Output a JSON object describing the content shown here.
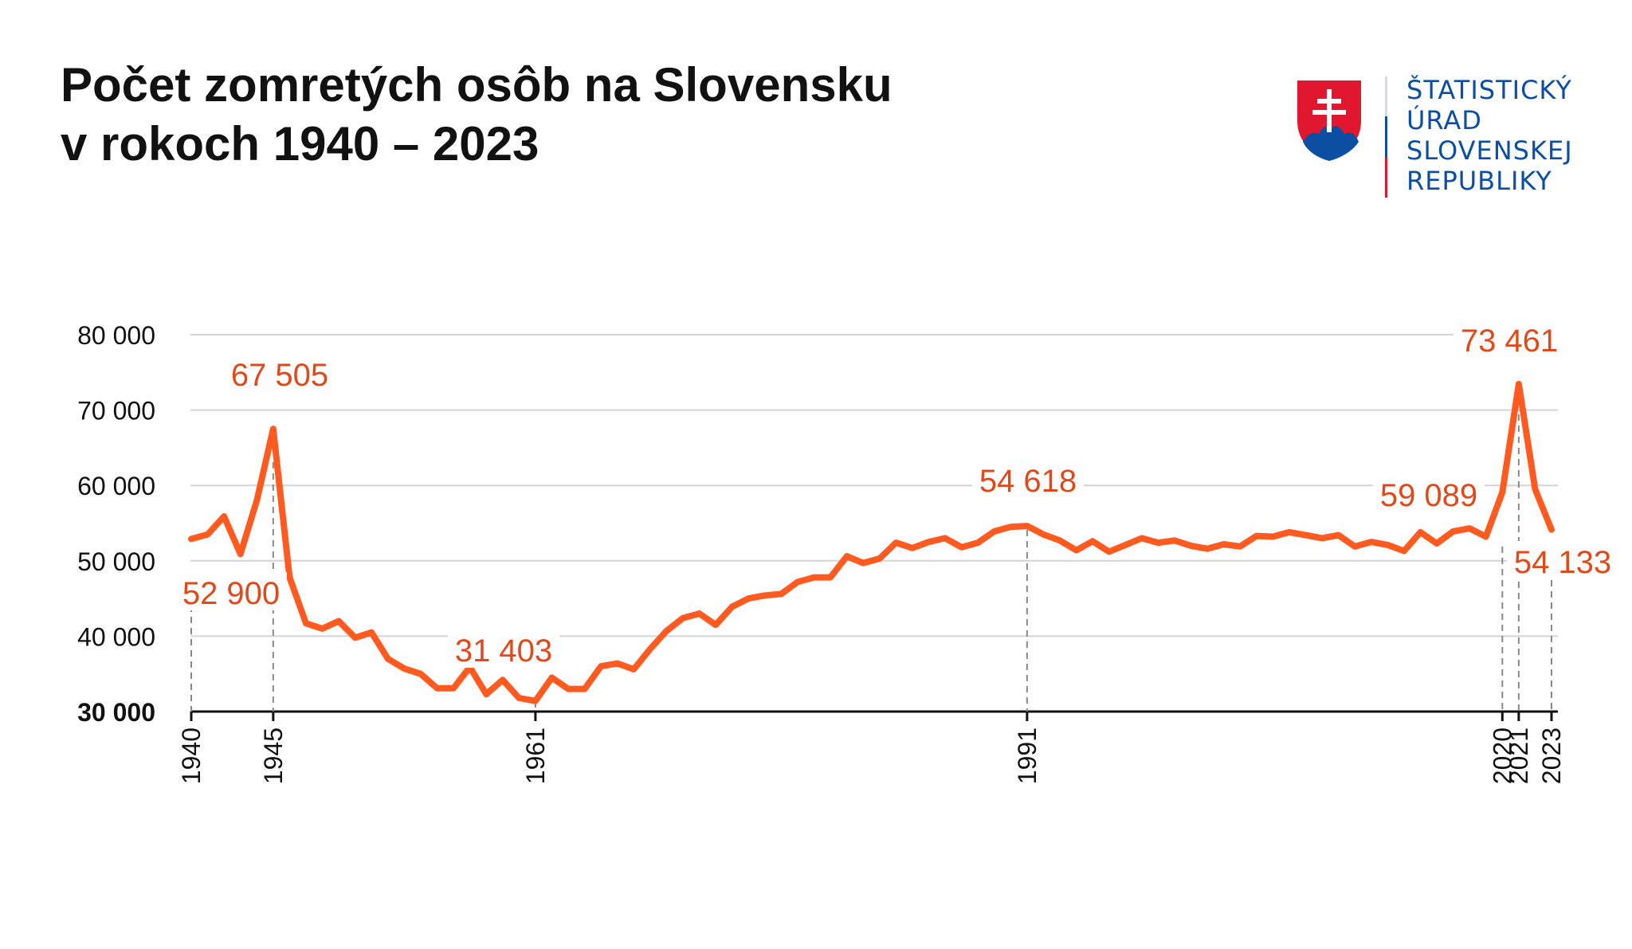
{
  "header": {
    "title_line1": "Počet zomretých osôb na Slovensku",
    "title_line2": "v rokoch 1940 – 2023"
  },
  "logo": {
    "line1": "ŠTATISTICKÝ",
    "line2": "ÚRAD",
    "line3": "SLOVENSKEJ",
    "line4": "REPUBLIKY",
    "icon": "slovak-coat-of-arms-icon",
    "colors": {
      "text": "#0b4ea2",
      "red": "#e0172f",
      "blue": "#0b4ea2"
    }
  },
  "chart_data": {
    "type": "line",
    "title": "Počet zomretých osôb na Slovensku v rokoch 1940 – 2023",
    "xlabel": "",
    "ylabel": "",
    "ylim": [
      30000,
      80000
    ],
    "yticks": [
      {
        "value": 30000,
        "label": "30 000"
      },
      {
        "value": 40000,
        "label": "40 000"
      },
      {
        "value": 50000,
        "label": "50 000"
      },
      {
        "value": 60000,
        "label": "60 000"
      },
      {
        "value": 70000,
        "label": "70 000"
      },
      {
        "value": 80000,
        "label": "80 000"
      }
    ],
    "xlim": [
      1940,
      2023
    ],
    "xticks": [
      1940,
      1945,
      1961,
      1991,
      2020,
      2021,
      2023
    ],
    "grid": true,
    "color": "#ff5a1f",
    "annotation_color": "#e04a1a",
    "x": [
      1940,
      1941,
      1942,
      1943,
      1944,
      1945,
      1946,
      1947,
      1948,
      1949,
      1950,
      1951,
      1952,
      1953,
      1954,
      1955,
      1956,
      1957,
      1958,
      1959,
      1960,
      1961,
      1962,
      1963,
      1964,
      1965,
      1966,
      1967,
      1968,
      1969,
      1970,
      1971,
      1972,
      1973,
      1974,
      1975,
      1976,
      1977,
      1978,
      1979,
      1980,
      1981,
      1982,
      1983,
      1984,
      1985,
      1986,
      1987,
      1988,
      1989,
      1990,
      1991,
      1992,
      1993,
      1994,
      1995,
      1996,
      1997,
      1998,
      1999,
      2000,
      2001,
      2002,
      2003,
      2004,
      2005,
      2006,
      2007,
      2008,
      2009,
      2010,
      2011,
      2012,
      2013,
      2014,
      2015,
      2016,
      2017,
      2018,
      2019,
      2020,
      2021,
      2022,
      2023
    ],
    "series": [
      {
        "values": [
          52900,
          53500,
          55900,
          50900,
          58000,
          67505,
          47800,
          41700,
          41000,
          42000,
          39800,
          40500,
          37000,
          35700,
          35000,
          33100,
          33100,
          35900,
          32300,
          34200,
          31800,
          31403,
          34500,
          33000,
          33000,
          36000,
          36400,
          35600,
          38300,
          40700,
          42400,
          43000,
          41500,
          43900,
          45000,
          45400,
          45600,
          47200,
          47800,
          47800,
          50600,
          49700,
          50300,
          52400,
          51700,
          52500,
          53000,
          51800,
          52400,
          53900,
          54500,
          54618,
          53500,
          52700,
          51400,
          52600,
          51200,
          52100,
          53000,
          52400,
          52700,
          52000,
          51600,
          52200,
          51900,
          53300,
          53200,
          53800,
          53400,
          53000,
          53400,
          51900,
          52500,
          52100,
          51300,
          53800,
          52300,
          53900,
          54300,
          53200,
          59089,
          73461,
          59500,
          54133
        ]
      }
    ],
    "annotations": [
      {
        "x": 1940,
        "value": 52900,
        "label": "52 900"
      },
      {
        "x": 1945,
        "value": 67505,
        "label": "67 505"
      },
      {
        "x": 1961,
        "value": 31403,
        "label": "31 403"
      },
      {
        "x": 1991,
        "value": 54618,
        "label": "54 618"
      },
      {
        "x": 2020,
        "value": 59089,
        "label": "59 089"
      },
      {
        "x": 2021,
        "value": 73461,
        "label": "73 461"
      },
      {
        "x": 2023,
        "value": 54133,
        "label": "54 133"
      }
    ]
  }
}
